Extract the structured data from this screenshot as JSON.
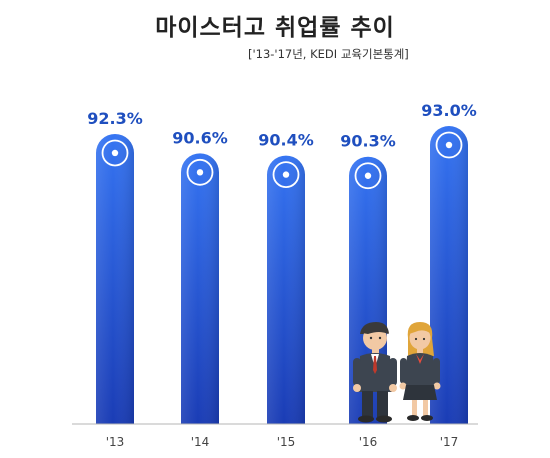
{
  "chart_data": {
    "type": "bar",
    "title": "마이스터고 취업률 추이",
    "subtitle": "['13-'17년, KEDI 교육기본통계]",
    "categories": [
      "'13",
      "'14",
      "'15",
      "'16",
      "'17"
    ],
    "values": [
      92.3,
      90.6,
      90.4,
      90.3,
      93.0
    ],
    "value_labels": [
      "92.3%",
      "90.6%",
      "90.4%",
      "90.3%",
      "93.0%"
    ],
    "unit": "%",
    "xlabel": "",
    "ylabel": "",
    "ylim": [
      0,
      100
    ],
    "grid": false,
    "legend": "none"
  },
  "colors": {
    "bar_top": "#2f6ff0",
    "bar_bottom": "#1838b0",
    "label": "#1f4fbf",
    "axis": "#aaaaaa",
    "tick": "#444444"
  },
  "illustration": {
    "name": "two-students-figures"
  }
}
